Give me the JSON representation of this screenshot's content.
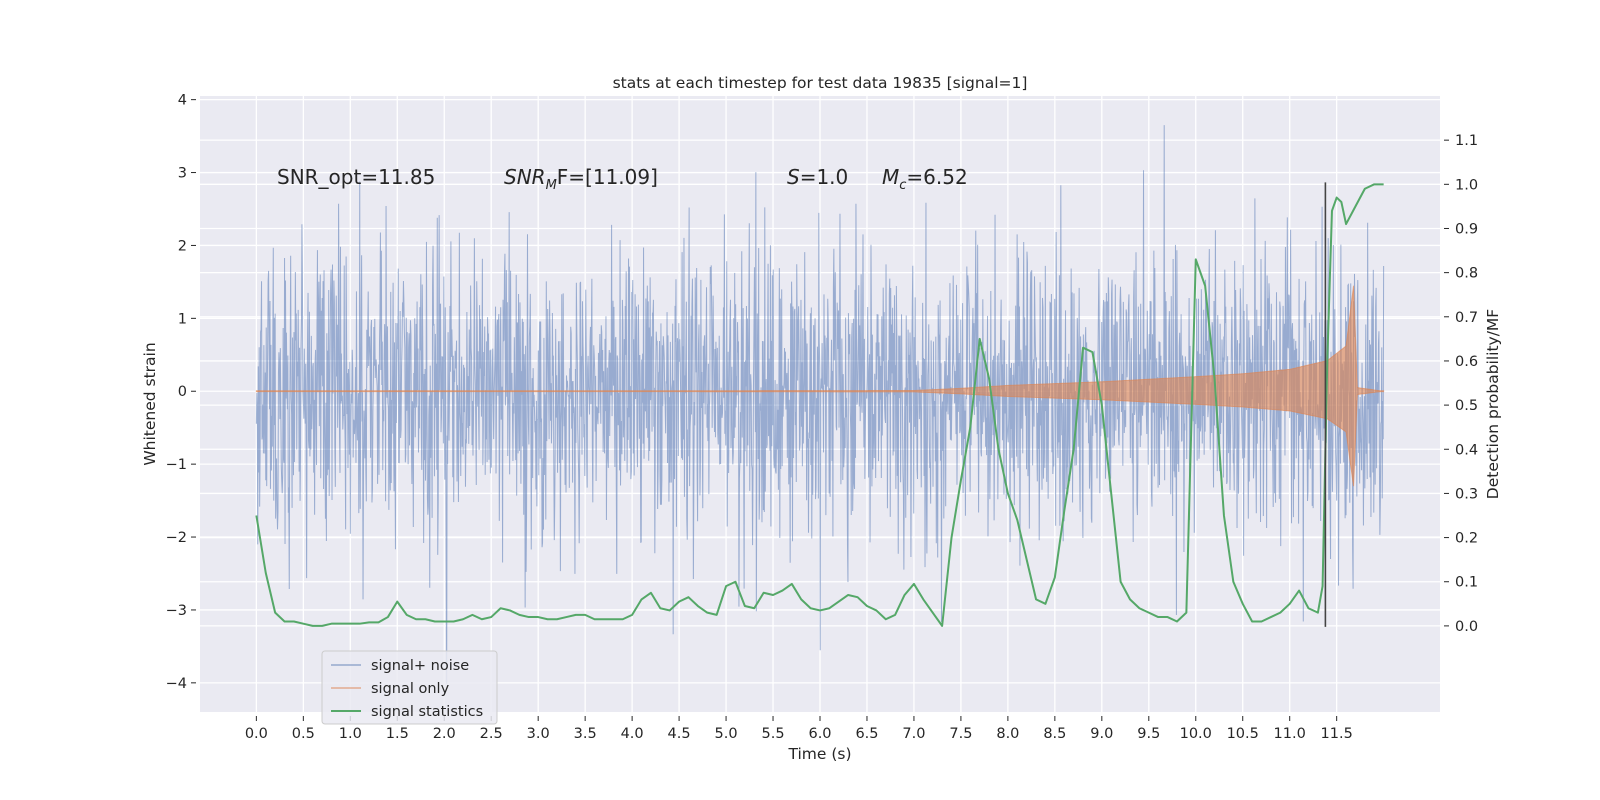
{
  "chart_data": {
    "type": "line",
    "title": "stats at each timestep for test data 19835 [signal=1]",
    "xlabel": "Time (s)",
    "ylabel": "Whitened strain",
    "y2label": "Detection probability/MF",
    "xlim": [
      -0.6,
      12.6
    ],
    "ylim": [
      -4.4,
      4.05
    ],
    "y2lim": [
      -0.195,
      1.2
    ],
    "x_ticks": [
      "0.0",
      "0.5",
      "1.0",
      "1.5",
      "2.0",
      "2.5",
      "3.0",
      "3.5",
      "4.0",
      "4.5",
      "5.0",
      "5.5",
      "6.0",
      "6.5",
      "7.0",
      "7.5",
      "8.0",
      "8.5",
      "9.0",
      "9.5",
      "10.0",
      "10.5",
      "11.0",
      "11.5"
    ],
    "y_ticks": [
      "4",
      "3",
      "2",
      "1",
      "0",
      "−1",
      "−2",
      "−3",
      "−4"
    ],
    "y2_ticks": [
      "1.1",
      "1.0",
      "0.9",
      "0.8",
      "0.7",
      "0.6",
      "0.5",
      "0.4",
      "0.3",
      "0.2",
      "0.1",
      "0.0"
    ],
    "grid": true,
    "legend_position": "lower-left",
    "annotations": {
      "snr_opt": "SNR_opt=11.85",
      "snr_mf_base": "SNR",
      "snr_mf_sub": "M",
      "snr_mf_rest": "F=[11.09]",
      "s_base": "S",
      "s_rest": "=1.0",
      "mc_base": "M",
      "mc_sub": "c",
      "mc_rest": "=6.52"
    },
    "vline_x": 11.38,
    "series": [
      {
        "name": "signal+ noise",
        "color": "#4c72b0",
        "kind": "noise",
        "x_range": [
          0.0,
          12.0
        ],
        "approx_std": 0.75,
        "approx_range": [
          -4.1,
          3.65
        ]
      },
      {
        "name": "signal only",
        "color": "#dd8452",
        "kind": "chirp",
        "x_range": [
          0.0,
          12.0
        ],
        "envelope_x": [
          0.0,
          7.0,
          7.5,
          8.0,
          9.0,
          10.0,
          10.5,
          11.0,
          11.4,
          11.6,
          11.68,
          11.72,
          12.0
        ],
        "envelope_y": [
          0.0,
          0.01,
          0.04,
          0.08,
          0.13,
          0.2,
          0.24,
          0.3,
          0.42,
          0.62,
          1.45,
          0.05,
          0.0
        ]
      },
      {
        "name": "signal statistics",
        "color": "#55a868",
        "axis": "right",
        "x": [
          0.0,
          0.1,
          0.2,
          0.3,
          0.4,
          0.5,
          0.6,
          0.7,
          0.8,
          0.9,
          1.0,
          1.1,
          1.2,
          1.3,
          1.4,
          1.5,
          1.6,
          1.7,
          1.8,
          1.9,
          2.0,
          2.1,
          2.2,
          2.3,
          2.4,
          2.5,
          2.6,
          2.7,
          2.8,
          2.9,
          3.0,
          3.1,
          3.2,
          3.3,
          3.4,
          3.5,
          3.6,
          3.7,
          3.8,
          3.9,
          4.0,
          4.1,
          4.2,
          4.3,
          4.4,
          4.5,
          4.6,
          4.7,
          4.8,
          4.9,
          5.0,
          5.1,
          5.2,
          5.3,
          5.4,
          5.5,
          5.6,
          5.7,
          5.8,
          5.9,
          6.0,
          6.1,
          6.2,
          6.3,
          6.4,
          6.5,
          6.6,
          6.7,
          6.8,
          6.9,
          7.0,
          7.1,
          7.2,
          7.3,
          7.4,
          7.5,
          7.6,
          7.7,
          7.8,
          7.9,
          8.0,
          8.1,
          8.2,
          8.3,
          8.4,
          8.5,
          8.6,
          8.7,
          8.8,
          8.9,
          9.0,
          9.1,
          9.2,
          9.3,
          9.4,
          9.5,
          9.6,
          9.7,
          9.8,
          9.9,
          10.0,
          10.1,
          10.2,
          10.3,
          10.4,
          10.5,
          10.6,
          10.7,
          10.8,
          10.9,
          11.0,
          11.1,
          11.2,
          11.3,
          11.35,
          11.4,
          11.45,
          11.5,
          11.55,
          11.6,
          11.7,
          11.8,
          11.9,
          12.0
        ],
        "y": [
          0.25,
          0.12,
          0.03,
          0.01,
          0.01,
          0.005,
          0.0,
          0.0,
          0.005,
          0.005,
          0.005,
          0.005,
          0.008,
          0.008,
          0.02,
          0.055,
          0.025,
          0.015,
          0.015,
          0.01,
          0.01,
          0.01,
          0.015,
          0.025,
          0.015,
          0.02,
          0.04,
          0.035,
          0.025,
          0.02,
          0.02,
          0.015,
          0.015,
          0.02,
          0.025,
          0.025,
          0.015,
          0.015,
          0.015,
          0.015,
          0.025,
          0.06,
          0.075,
          0.04,
          0.035,
          0.055,
          0.065,
          0.045,
          0.03,
          0.025,
          0.09,
          0.1,
          0.045,
          0.04,
          0.075,
          0.07,
          0.08,
          0.095,
          0.06,
          0.04,
          0.035,
          0.04,
          0.055,
          0.07,
          0.065,
          0.045,
          0.035,
          0.015,
          0.025,
          0.07,
          0.095,
          0.06,
          0.03,
          0.0,
          0.2,
          0.33,
          0.45,
          0.65,
          0.56,
          0.4,
          0.3,
          0.24,
          0.15,
          0.06,
          0.05,
          0.11,
          0.26,
          0.4,
          0.63,
          0.62,
          0.5,
          0.3,
          0.1,
          0.06,
          0.04,
          0.03,
          0.02,
          0.02,
          0.01,
          0.03,
          0.83,
          0.77,
          0.56,
          0.25,
          0.1,
          0.05,
          0.01,
          0.01,
          0.02,
          0.03,
          0.05,
          0.08,
          0.04,
          0.03,
          0.09,
          0.6,
          0.94,
          0.97,
          0.96,
          0.91,
          0.95,
          0.99,
          1.0,
          1.0
        ]
      }
    ]
  }
}
